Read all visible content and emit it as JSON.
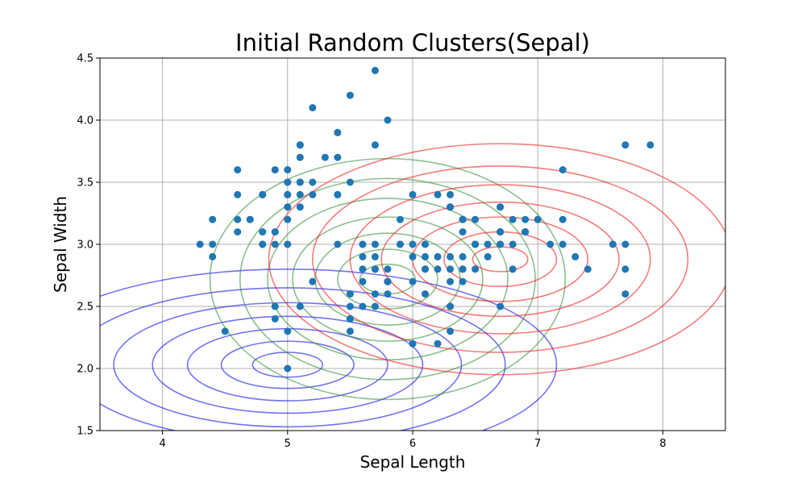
{
  "chart_data": {
    "type": "scatter",
    "title": "Initial Random Clusters(Sepal)",
    "xlabel": "Sepal Length",
    "ylabel": "Sepal Width",
    "xlim": [
      3.5,
      8.5
    ],
    "ylim": [
      1.5,
      4.5
    ],
    "xticks": [
      4,
      5,
      6,
      7,
      8
    ],
    "yticks": [
      1.5,
      2.0,
      2.5,
      3.0,
      3.5,
      4.0,
      4.5
    ],
    "xtick_labels": [
      "4",
      "5",
      "6",
      "7",
      "8"
    ],
    "ytick_labels": [
      "1.5",
      "2.0",
      "2.5",
      "3.0",
      "3.5",
      "4.0",
      "4.5"
    ],
    "grid": true,
    "point_color": "#1f77b4",
    "points": [
      [
        5.1,
        3.5
      ],
      [
        4.9,
        3.0
      ],
      [
        4.7,
        3.2
      ],
      [
        4.6,
        3.1
      ],
      [
        5.0,
        3.6
      ],
      [
        5.4,
        3.9
      ],
      [
        4.6,
        3.4
      ],
      [
        5.0,
        3.4
      ],
      [
        4.4,
        2.9
      ],
      [
        4.9,
        3.1
      ],
      [
        5.4,
        3.7
      ],
      [
        4.8,
        3.4
      ],
      [
        4.8,
        3.0
      ],
      [
        4.3,
        3.0
      ],
      [
        5.8,
        4.0
      ],
      [
        5.7,
        4.4
      ],
      [
        5.4,
        3.9
      ],
      [
        5.1,
        3.5
      ],
      [
        5.7,
        3.8
      ],
      [
        5.1,
        3.8
      ],
      [
        5.4,
        3.4
      ],
      [
        5.1,
        3.7
      ],
      [
        4.6,
        3.6
      ],
      [
        5.1,
        3.3
      ],
      [
        4.8,
        3.4
      ],
      [
        5.0,
        3.0
      ],
      [
        5.0,
        3.4
      ],
      [
        5.2,
        3.5
      ],
      [
        5.2,
        3.4
      ],
      [
        4.7,
        3.2
      ],
      [
        4.8,
        3.1
      ],
      [
        5.4,
        3.4
      ],
      [
        5.2,
        4.1
      ],
      [
        5.5,
        4.2
      ],
      [
        4.9,
        3.1
      ],
      [
        5.0,
        3.2
      ],
      [
        5.5,
        3.5
      ],
      [
        4.9,
        3.6
      ],
      [
        4.4,
        3.0
      ],
      [
        5.1,
        3.4
      ],
      [
        5.0,
        3.5
      ],
      [
        4.5,
        2.3
      ],
      [
        4.4,
        3.2
      ],
      [
        5.0,
        3.5
      ],
      [
        5.1,
        3.8
      ],
      [
        4.8,
        3.0
      ],
      [
        5.1,
        3.8
      ],
      [
        4.6,
        3.2
      ],
      [
        5.3,
        3.7
      ],
      [
        5.0,
        3.3
      ],
      [
        7.0,
        3.2
      ],
      [
        6.4,
        3.2
      ],
      [
        6.9,
        3.1
      ],
      [
        5.5,
        2.3
      ],
      [
        6.5,
        2.8
      ],
      [
        5.7,
        2.8
      ],
      [
        6.3,
        3.3
      ],
      [
        4.9,
        2.4
      ],
      [
        6.6,
        2.9
      ],
      [
        5.2,
        2.7
      ],
      [
        5.0,
        2.0
      ],
      [
        5.9,
        3.0
      ],
      [
        6.0,
        2.2
      ],
      [
        6.1,
        2.9
      ],
      [
        5.6,
        2.9
      ],
      [
        6.7,
        3.1
      ],
      [
        5.6,
        3.0
      ],
      [
        5.8,
        2.7
      ],
      [
        6.2,
        2.2
      ],
      [
        5.6,
        2.5
      ],
      [
        5.9,
        3.2
      ],
      [
        6.1,
        2.8
      ],
      [
        6.3,
        2.5
      ],
      [
        6.1,
        2.8
      ],
      [
        6.4,
        2.9
      ],
      [
        6.6,
        3.0
      ],
      [
        6.8,
        2.8
      ],
      [
        6.7,
        3.0
      ],
      [
        6.0,
        2.9
      ],
      [
        5.7,
        2.6
      ],
      [
        5.5,
        2.4
      ],
      [
        5.5,
        2.4
      ],
      [
        5.8,
        2.7
      ],
      [
        6.0,
        2.7
      ],
      [
        5.4,
        3.0
      ],
      [
        6.0,
        3.4
      ],
      [
        6.7,
        3.1
      ],
      [
        6.3,
        2.3
      ],
      [
        5.6,
        3.0
      ],
      [
        5.5,
        2.5
      ],
      [
        5.5,
        2.6
      ],
      [
        6.1,
        3.0
      ],
      [
        5.8,
        2.6
      ],
      [
        5.0,
        2.3
      ],
      [
        5.6,
        2.7
      ],
      [
        5.7,
        3.0
      ],
      [
        5.7,
        2.9
      ],
      [
        6.2,
        2.9
      ],
      [
        5.1,
        2.5
      ],
      [
        5.7,
        2.8
      ],
      [
        6.3,
        3.3
      ],
      [
        5.8,
        2.7
      ],
      [
        7.1,
        3.0
      ],
      [
        6.3,
        2.9
      ],
      [
        6.5,
        3.0
      ],
      [
        7.6,
        3.0
      ],
      [
        4.9,
        2.5
      ],
      [
        7.3,
        2.9
      ],
      [
        6.7,
        2.5
      ],
      [
        7.2,
        3.6
      ],
      [
        6.5,
        3.2
      ],
      [
        6.4,
        2.7
      ],
      [
        6.8,
        3.0
      ],
      [
        5.7,
        2.5
      ],
      [
        5.8,
        2.8
      ],
      [
        6.4,
        3.2
      ],
      [
        6.5,
        3.0
      ],
      [
        7.7,
        3.8
      ],
      [
        7.7,
        2.6
      ],
      [
        6.0,
        2.2
      ],
      [
        6.9,
        3.2
      ],
      [
        5.6,
        2.8
      ],
      [
        7.7,
        2.8
      ],
      [
        6.3,
        2.7
      ],
      [
        6.7,
        3.3
      ],
      [
        7.2,
        3.2
      ],
      [
        6.2,
        2.8
      ],
      [
        6.1,
        3.0
      ],
      [
        6.4,
        2.8
      ],
      [
        7.2,
        3.0
      ],
      [
        7.4,
        2.8
      ],
      [
        7.9,
        3.8
      ],
      [
        6.4,
        2.8
      ],
      [
        6.3,
        2.8
      ],
      [
        6.1,
        2.6
      ],
      [
        7.7,
        3.0
      ],
      [
        6.3,
        3.4
      ],
      [
        6.4,
        3.1
      ],
      [
        6.0,
        3.0
      ],
      [
        6.9,
        3.1
      ],
      [
        6.7,
        3.1
      ],
      [
        6.9,
        3.1
      ],
      [
        5.8,
        2.7
      ],
      [
        6.8,
        3.2
      ],
      [
        6.7,
        3.3
      ],
      [
        6.7,
        3.0
      ],
      [
        6.3,
        2.5
      ],
      [
        6.5,
        3.0
      ],
      [
        6.2,
        3.4
      ],
      [
        5.9,
        3.0
      ]
    ],
    "contours": [
      {
        "color": "#0000ee",
        "opacity": 0.55,
        "center": [
          5.0,
          2.03
        ],
        "radii": [
          [
            0.28,
            0.1
          ],
          [
            0.53,
            0.19
          ],
          [
            0.8,
            0.29
          ],
          [
            1.08,
            0.39
          ],
          [
            1.39,
            0.5
          ],
          [
            1.74,
            0.62
          ],
          [
            2.15,
            0.77
          ]
        ]
      },
      {
        "color": "#2e8b2e",
        "opacity": 0.55,
        "center": [
          5.8,
          2.72
        ],
        "radii": [
          [
            0.22,
            0.12
          ],
          [
            0.4,
            0.24
          ],
          [
            0.58,
            0.37
          ],
          [
            0.76,
            0.5
          ],
          [
            0.96,
            0.65
          ],
          [
            1.18,
            0.81
          ],
          [
            1.42,
            0.97
          ]
        ]
      },
      {
        "color": "#ee1111",
        "opacity": 0.55,
        "center": [
          6.7,
          2.88
        ],
        "radii": [
          [
            0.22,
            0.1
          ],
          [
            0.45,
            0.22
          ],
          [
            0.7,
            0.34
          ],
          [
            0.95,
            0.46
          ],
          [
            1.2,
            0.6
          ],
          [
            1.5,
            0.75
          ],
          [
            1.85,
            0.93
          ]
        ]
      }
    ]
  }
}
